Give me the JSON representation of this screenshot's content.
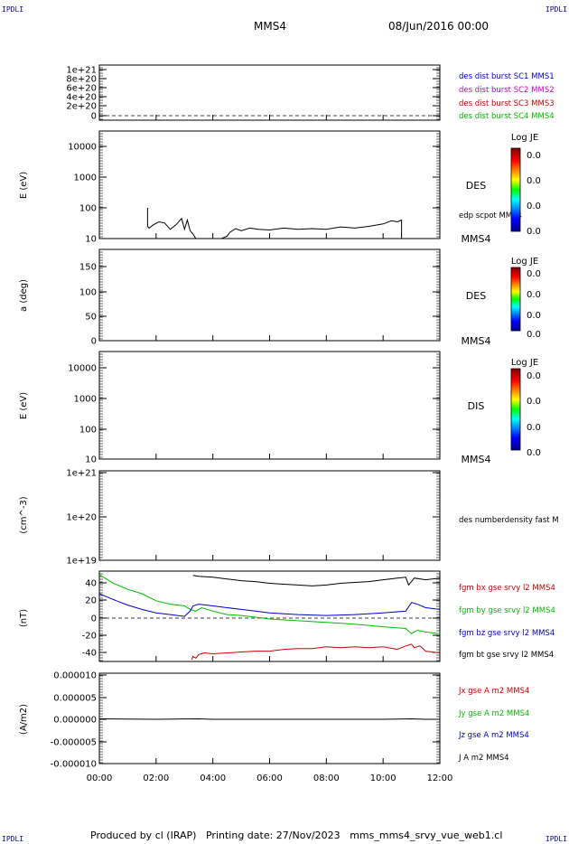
{
  "header": {
    "corner_label": "IPDLI",
    "title": "MMS4",
    "datetime": "08/Jun/2016 00:00"
  },
  "footer": {
    "produced_by": "Produced by cl (IRAP)",
    "printing_date": "Printing date: 27/Nov/2023",
    "product": "mms_mms4_srvy_vue_web1.cl"
  },
  "x_axis": {
    "ticks": [
      "00:00",
      "02:00",
      "04:00",
      "06:00",
      "08:00",
      "10:00",
      "12:00"
    ],
    "range_hours": [
      0,
      12
    ]
  },
  "panels": [
    {
      "id": "p1",
      "ylabel": "",
      "yticks": [
        "1e+21",
        "8e+20",
        "6e+20",
        "4e+20",
        "2e+20",
        "0"
      ],
      "legend": [
        {
          "text": "des dist burst SC1 MMS1",
          "color": "#0000cc"
        },
        {
          "text": "des dist burst SC2 MMS2",
          "color": "#cc00cc"
        },
        {
          "text": "des dist burst SC3 MMS3",
          "color": "#cc0000"
        },
        {
          "text": "des dist burst SC4 MMS4",
          "color": "#00bb00"
        }
      ]
    },
    {
      "id": "p2",
      "ylabel": "E (eV)",
      "yticks": [
        "10000",
        "1000",
        "100",
        "10"
      ],
      "species": "DES",
      "sc": "MMS4",
      "overlay_label": "edp scpot MMS4",
      "colorbar": {
        "title": "Log JE",
        "ticks": [
          "0.0",
          "0.0",
          "0.0",
          "0.0"
        ]
      }
    },
    {
      "id": "p3",
      "ylabel": "a (deg)",
      "yticks": [
        "150",
        "100",
        "50",
        "0"
      ],
      "species": "DES",
      "sc": "MMS4",
      "colorbar": {
        "title": "Log JE",
        "ticks": [
          "0.0",
          "0.0",
          "0.0",
          "0.0"
        ]
      }
    },
    {
      "id": "p4",
      "ylabel": "E (eV)",
      "yticks": [
        "10000",
        "1000",
        "100",
        "10"
      ],
      "species": "DIS",
      "sc": "MMS4",
      "colorbar": {
        "title": "Log JE",
        "ticks": [
          "0.0",
          "0.0",
          "0.0",
          "0.0"
        ]
      }
    },
    {
      "id": "p5",
      "ylabel": "(cm^-3)",
      "yticks": [
        "1e+21",
        "1e+20",
        "1e+19"
      ],
      "legend": [
        {
          "text": "des numberdensity fast M",
          "color": "#000000"
        }
      ]
    },
    {
      "id": "p6",
      "ylabel": "(nT)",
      "yticks": [
        "40",
        "20",
        "0",
        "-20",
        "-40"
      ],
      "legend": [
        {
          "text": "fgm bx gse srvy l2 MMS4",
          "color": "#cc0000"
        },
        {
          "text": "fgm by gse srvy l2 MMS4",
          "color": "#00bb00"
        },
        {
          "text": "fgm bz gse srvy l2 MMS4",
          "color": "#0000cc"
        },
        {
          "text": "fgm bt gse srvy l2 MMS4",
          "color": "#000000"
        }
      ]
    },
    {
      "id": "p7",
      "ylabel": "(A/m2)",
      "yticks": [
        "0.000010",
        "0.000005",
        "0.000000",
        "-0.000005",
        "-0.000010"
      ],
      "legend": [
        {
          "text": "Jx gse A m2 MMS4",
          "color": "#cc0000"
        },
        {
          "text": "Jy gse A m2 MMS4",
          "color": "#00bb00"
        },
        {
          "text": "Jz gse A m2 MMS4",
          "color": "#0000cc"
        },
        {
          "text": "J A m2 MMS4",
          "color": "#000000"
        }
      ]
    }
  ],
  "chart_data": [
    {
      "type": "line",
      "panel": "p2",
      "series": [
        {
          "name": "edp scpot MMS4",
          "color": "#000000",
          "x": [
            1.7,
            1.7,
            1.75,
            1.9,
            2.1,
            2.3,
            2.5,
            2.7,
            2.9,
            3.0,
            3.1,
            3.2,
            3.3,
            3.4,
            3.5,
            3.7,
            4.0,
            4.3,
            4.5,
            4.6,
            4.8,
            5.0,
            5.3,
            5.6,
            6.0,
            6.5,
            7.0,
            7.5,
            8.0,
            8.5,
            9.0,
            9.5,
            10.0,
            10.3,
            10.5,
            10.65,
            10.65
          ],
          "y": [
            100,
            25,
            22,
            28,
            35,
            32,
            20,
            28,
            45,
            20,
            40,
            18,
            14,
            10,
            10,
            10,
            10,
            10,
            12,
            16,
            21,
            18,
            22,
            20,
            19,
            22,
            20,
            21,
            20,
            24,
            22,
            25,
            30,
            38,
            35,
            40,
            10
          ]
        }
      ],
      "xlabel": "",
      "ylabel": "E (eV)",
      "yscale": "log",
      "ylim": [
        10,
        15000
      ]
    },
    {
      "type": "line",
      "panel": "p6",
      "hline": 0,
      "series": [
        {
          "name": "fgm bx gse srvy l2 MMS4",
          "color": "#cc0000",
          "x": [
            3.25,
            3.3,
            3.4,
            3.5,
            3.7,
            4.0,
            4.5,
            5.0,
            5.5,
            6.0,
            6.5,
            7.0,
            7.5,
            8.0,
            8.5,
            9.0,
            9.5,
            10.0,
            10.5,
            10.8,
            11.0,
            11.1,
            11.3,
            11.5,
            12.0
          ],
          "y": [
            -48,
            -44,
            -46,
            -42,
            -40,
            -41,
            -40,
            -39,
            -38,
            -38,
            -36,
            -35,
            -35,
            -33,
            -34,
            -33,
            -34,
            -33,
            -36,
            -32,
            -30,
            -34,
            -32,
            -38,
            -40
          ]
        },
        {
          "name": "fgm by gse srvy l2 MMS4",
          "color": "#00bb00",
          "x": [
            0.0,
            0.2,
            0.5,
            1.0,
            1.5,
            2.0,
            2.5,
            3.0,
            3.2,
            3.4,
            3.6,
            4.0,
            4.5,
            5.0,
            5.5,
            6.0,
            7.0,
            8.0,
            9.0,
            10.0,
            10.8,
            11.0,
            11.2,
            11.5,
            12.0
          ],
          "y": [
            50,
            46,
            40,
            33,
            28,
            20,
            16,
            14,
            10,
            8,
            12,
            8,
            4,
            3,
            1,
            -1,
            -3,
            -5,
            -7,
            -10,
            -12,
            -18,
            -14,
            -16,
            -18
          ]
        },
        {
          "name": "fgm bz gse srvy l2 MMS4",
          "color": "#0000cc",
          "x": [
            0.0,
            0.3,
            0.6,
            1.0,
            1.5,
            2.0,
            2.5,
            3.0,
            3.2,
            3.3,
            3.5,
            4.0,
            4.5,
            5.0,
            5.5,
            6.0,
            7.0,
            8.0,
            9.0,
            10.0,
            10.8,
            11.0,
            11.2,
            11.5,
            12.0
          ],
          "y": [
            28,
            24,
            20,
            15,
            10,
            6,
            4,
            2,
            8,
            14,
            16,
            14,
            12,
            10,
            8,
            6,
            4,
            3,
            4,
            6,
            8,
            18,
            16,
            12,
            10
          ]
        },
        {
          "name": "fgm bt gse srvy l2 MMS4",
          "color": "#000000",
          "x": [
            3.3,
            3.5,
            4.0,
            4.5,
            5.0,
            5.5,
            6.0,
            6.5,
            7.0,
            7.5,
            8.0,
            8.5,
            9.0,
            9.5,
            10.0,
            10.5,
            10.8,
            10.9,
            11.0,
            11.1,
            11.5,
            12.0
          ],
          "y": [
            49,
            48,
            47,
            45,
            43,
            42,
            40,
            39,
            38,
            37,
            38,
            40,
            41,
            42,
            44,
            46,
            47,
            38,
            42,
            46,
            44,
            46
          ]
        }
      ],
      "xlabel": "",
      "ylabel": "(nT)",
      "ylim": [
        -50,
        50
      ]
    },
    {
      "type": "line",
      "panel": "p7",
      "series": [
        {
          "name": "J A m2 MMS4",
          "color": "#000000",
          "x": [
            0.0,
            1.0,
            2.0,
            3.0,
            3.5,
            4.0,
            5.0,
            6.0,
            7.0,
            8.0,
            9.0,
            10.0,
            11.0,
            11.5,
            12.0
          ],
          "y": [
            1e-07,
            5e-08,
            0.0,
            8e-08,
            1e-07,
            0.0,
            0.0,
            0.0,
            0.0,
            0.0,
            0.0,
            0.0,
            1e-07,
            0.0,
            0.0
          ]
        }
      ],
      "xlabel": "",
      "ylabel": "(A/m2)",
      "ylim": [
        -1e-05,
        1e-05
      ]
    }
  ]
}
